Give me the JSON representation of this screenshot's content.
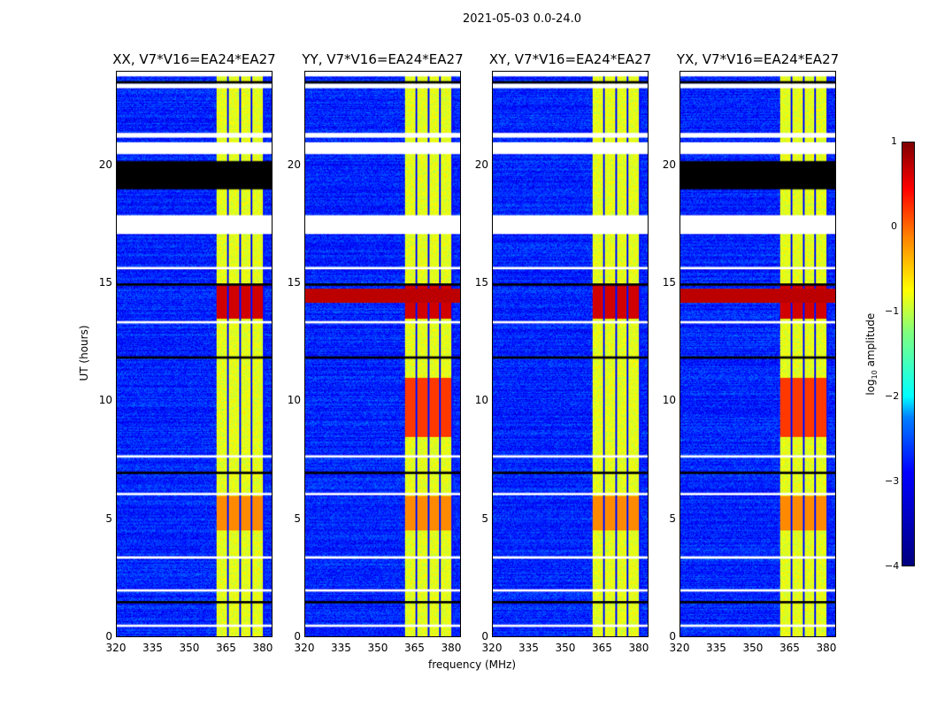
{
  "suptitle": "2021-05-03 0.0-24.0",
  "chart_data": {
    "type": "heatmap",
    "title": "2021-05-03 0.0-24.0",
    "xlabel": "frequency (MHz)",
    "ylabel": "UT (hours)",
    "xlim": [
      320,
      384
    ],
    "ylim": [
      0,
      24
    ],
    "xticks": [
      "320",
      "335",
      "350",
      "365",
      "380"
    ],
    "yticks": [
      "0",
      "5",
      "10",
      "15",
      "20"
    ],
    "panels": [
      {
        "title": "XX, V7*V16=EA24*EA27",
        "red_stripe": false
      },
      {
        "title": "YY, V7*V16=EA24*EA27",
        "red_stripe": true
      },
      {
        "title": "XY, V7*V16=EA24*EA27",
        "red_stripe": false
      },
      {
        "title": "YX, V7*V16=EA24*EA27",
        "red_stripe": true
      }
    ],
    "bright_band_mhz": [
      361,
      381
    ],
    "background_log10_amplitude": -3.2,
    "band_log10_amplitude": -1.0,
    "flagged_white_hours": [
      [
        23.3,
        23.5
      ],
      [
        21.2,
        21.4
      ],
      [
        20.5,
        21.0
      ],
      [
        17.1,
        17.9
      ],
      [
        15.6,
        15.7
      ],
      [
        13.3,
        13.4
      ],
      [
        7.6,
        7.7
      ],
      [
        6.0,
        6.1
      ],
      [
        3.3,
        3.4
      ],
      [
        1.9,
        2.0
      ],
      [
        0.4,
        0.5
      ]
    ],
    "flagged_black_hours": [
      [
        19.0,
        20.2
      ],
      [
        23.5,
        23.6
      ],
      [
        14.9,
        15.0
      ],
      [
        11.8,
        11.9
      ],
      [
        6.9,
        7.0
      ],
      [
        1.4,
        1.5
      ]
    ],
    "colorbar": {
      "label": "log10 amplitude",
      "range": [
        -4,
        1
      ],
      "ticks": [
        "1",
        "0",
        "−1",
        "−2",
        "−3",
        "−4"
      ],
      "colormap": "jet"
    }
  }
}
